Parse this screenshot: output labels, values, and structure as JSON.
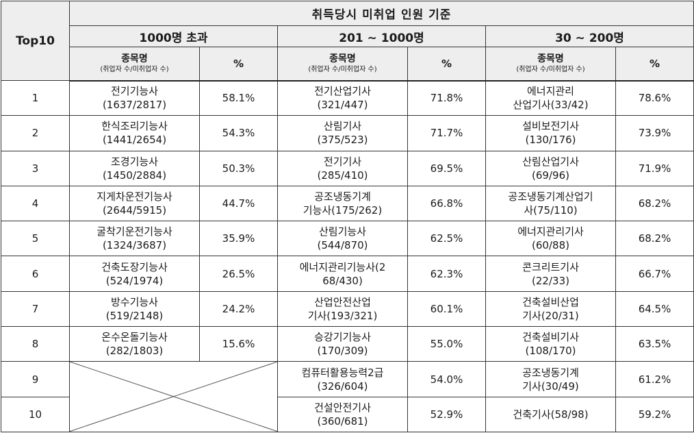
{
  "header": {
    "top10": "Top10",
    "title": "취득당시 미취업 인원 기준",
    "groups": [
      "1000명 초과",
      "201 ~ 1000명",
      "30 ~ 200명"
    ],
    "name_col": "종목명",
    "name_col_sub": "(취업자 수/미취업자 수)",
    "pct_col": "%"
  },
  "rows": [
    {
      "rank": "1",
      "g1": {
        "l1": "전기기능사",
        "l2": "(1637/2817)",
        "pct": "58.1%"
      },
      "g2": {
        "l1": "전기산업기사",
        "l2": "(321/447)",
        "pct": "71.8%"
      },
      "g3": {
        "l1": "에너지관리",
        "l2": "산업기사(33/42)",
        "pct": "78.6%"
      }
    },
    {
      "rank": "2",
      "g1": {
        "l1": "한식조리기능사",
        "l2": "(1441/2654)",
        "pct": "54.3%"
      },
      "g2": {
        "l1": "산림기사",
        "l2": "(375/523)",
        "pct": "71.7%"
      },
      "g3": {
        "l1": "설비보전기사",
        "l2": "(130/176)",
        "pct": "73.9%"
      }
    },
    {
      "rank": "3",
      "g1": {
        "l1": "조경기능사",
        "l2": "(1450/2884)",
        "pct": "50.3%"
      },
      "g2": {
        "l1": "전기기사",
        "l2": "(285/410)",
        "pct": "69.5%"
      },
      "g3": {
        "l1": "산림산업기사",
        "l2": "(69/96)",
        "pct": "71.9%"
      }
    },
    {
      "rank": "4",
      "g1": {
        "l1": "지게차운전기능사",
        "l2": "(2644/5915)",
        "pct": "44.7%"
      },
      "g2": {
        "l1": "공조냉동기계",
        "l2": "기능사(175/262)",
        "pct": "66.8%"
      },
      "g3": {
        "l1": "공조냉동기계산업기",
        "l2": "사(75/110)",
        "pct": "68.2%"
      }
    },
    {
      "rank": "5",
      "g1": {
        "l1": "굴착기운전기능사",
        "l2": "(1324/3687)",
        "pct": "35.9%"
      },
      "g2": {
        "l1": "산림기능사",
        "l2": "(544/870)",
        "pct": "62.5%"
      },
      "g3": {
        "l1": "에너지관리기사",
        "l2": "(60/88)",
        "pct": "68.2%"
      }
    },
    {
      "rank": "6",
      "g1": {
        "l1": "건축도장기능사",
        "l2": "(524/1974)",
        "pct": "26.5%"
      },
      "g2": {
        "l1": "에너지관리기능사(2",
        "l2": "68/430)",
        "pct": "62.3%"
      },
      "g3": {
        "l1": "콘크리트기사",
        "l2": "(22/33)",
        "pct": "66.7%"
      }
    },
    {
      "rank": "7",
      "g1": {
        "l1": "방수기능사",
        "l2": "(519/2148)",
        "pct": "24.2%"
      },
      "g2": {
        "l1": "산업안전산업",
        "l2": "기사(193/321)",
        "pct": "60.1%"
      },
      "g3": {
        "l1": "건축설비산업",
        "l2": "기사(20/31)",
        "pct": "64.5%"
      }
    },
    {
      "rank": "8",
      "g1": {
        "l1": "온수온돌기능사",
        "l2": "(282/1803)",
        "pct": "15.6%"
      },
      "g2": {
        "l1": "승강기기능사",
        "l2": "(170/309)",
        "pct": "55.0%"
      },
      "g3": {
        "l1": "건축설비기사",
        "l2": "(108/170)",
        "pct": "63.5%"
      }
    },
    {
      "rank": "9",
      "g2": {
        "l1": "컴퓨터활용능력2급",
        "l2": "(326/604)",
        "pct": "54.0%"
      },
      "g3": {
        "l1": "공조냉동기계",
        "l2": "기사(30/49)",
        "pct": "61.2%"
      }
    },
    {
      "rank": "10",
      "g2": {
        "l1": "건설안전기사",
        "l2": "(360/681)",
        "pct": "52.9%"
      },
      "g3": {
        "l1": "건축기사(58/98)",
        "l2": "",
        "pct": "59.2%"
      }
    }
  ]
}
